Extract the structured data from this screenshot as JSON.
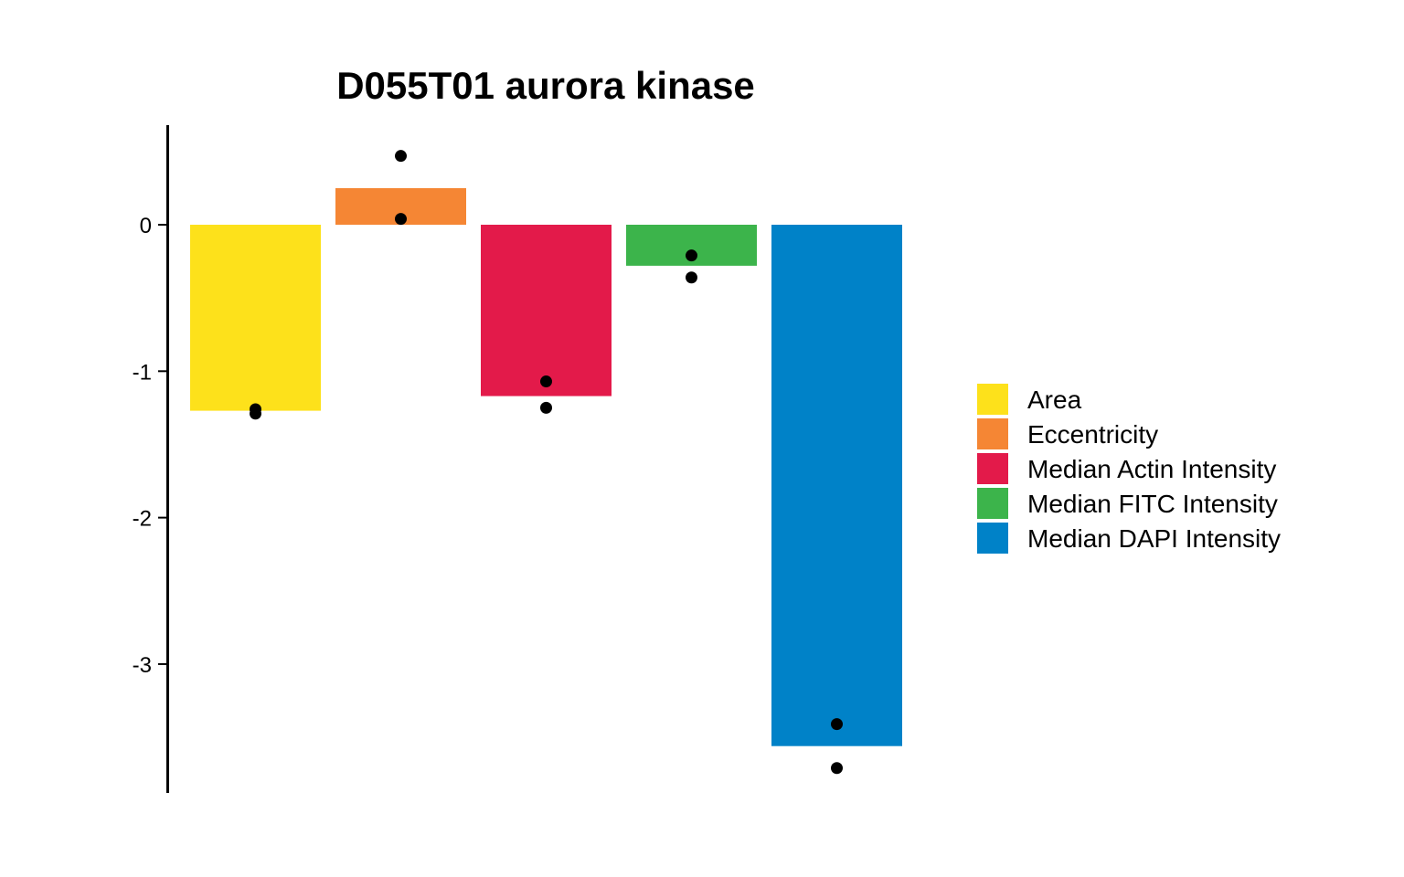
{
  "chart_data": {
    "type": "bar",
    "title": "D055T01 aurora kinase",
    "xlabel": "",
    "ylabel": "",
    "ylim": [
      -3.88,
      0.68
    ],
    "yticks": [
      0,
      -1,
      -2,
      -3
    ],
    "grid": false,
    "legend_position": "right",
    "categories": [
      "Area",
      "Eccentricity",
      "Median Actin Intensity",
      "Median FITC Intensity",
      "Median DAPI Intensity"
    ],
    "values": [
      -1.27,
      0.25,
      -1.17,
      -0.28,
      -3.56
    ],
    "colors": [
      "#FDE11B",
      "#F58634",
      "#E31A4A",
      "#3CB44B",
      "#0082C8"
    ],
    "points": [
      [
        -1.26,
        -1.29
      ],
      [
        0.47,
        0.04
      ],
      [
        -1.07,
        -1.25
      ],
      [
        -0.21,
        -0.36
      ],
      [
        -3.41,
        -3.71
      ]
    ]
  }
}
